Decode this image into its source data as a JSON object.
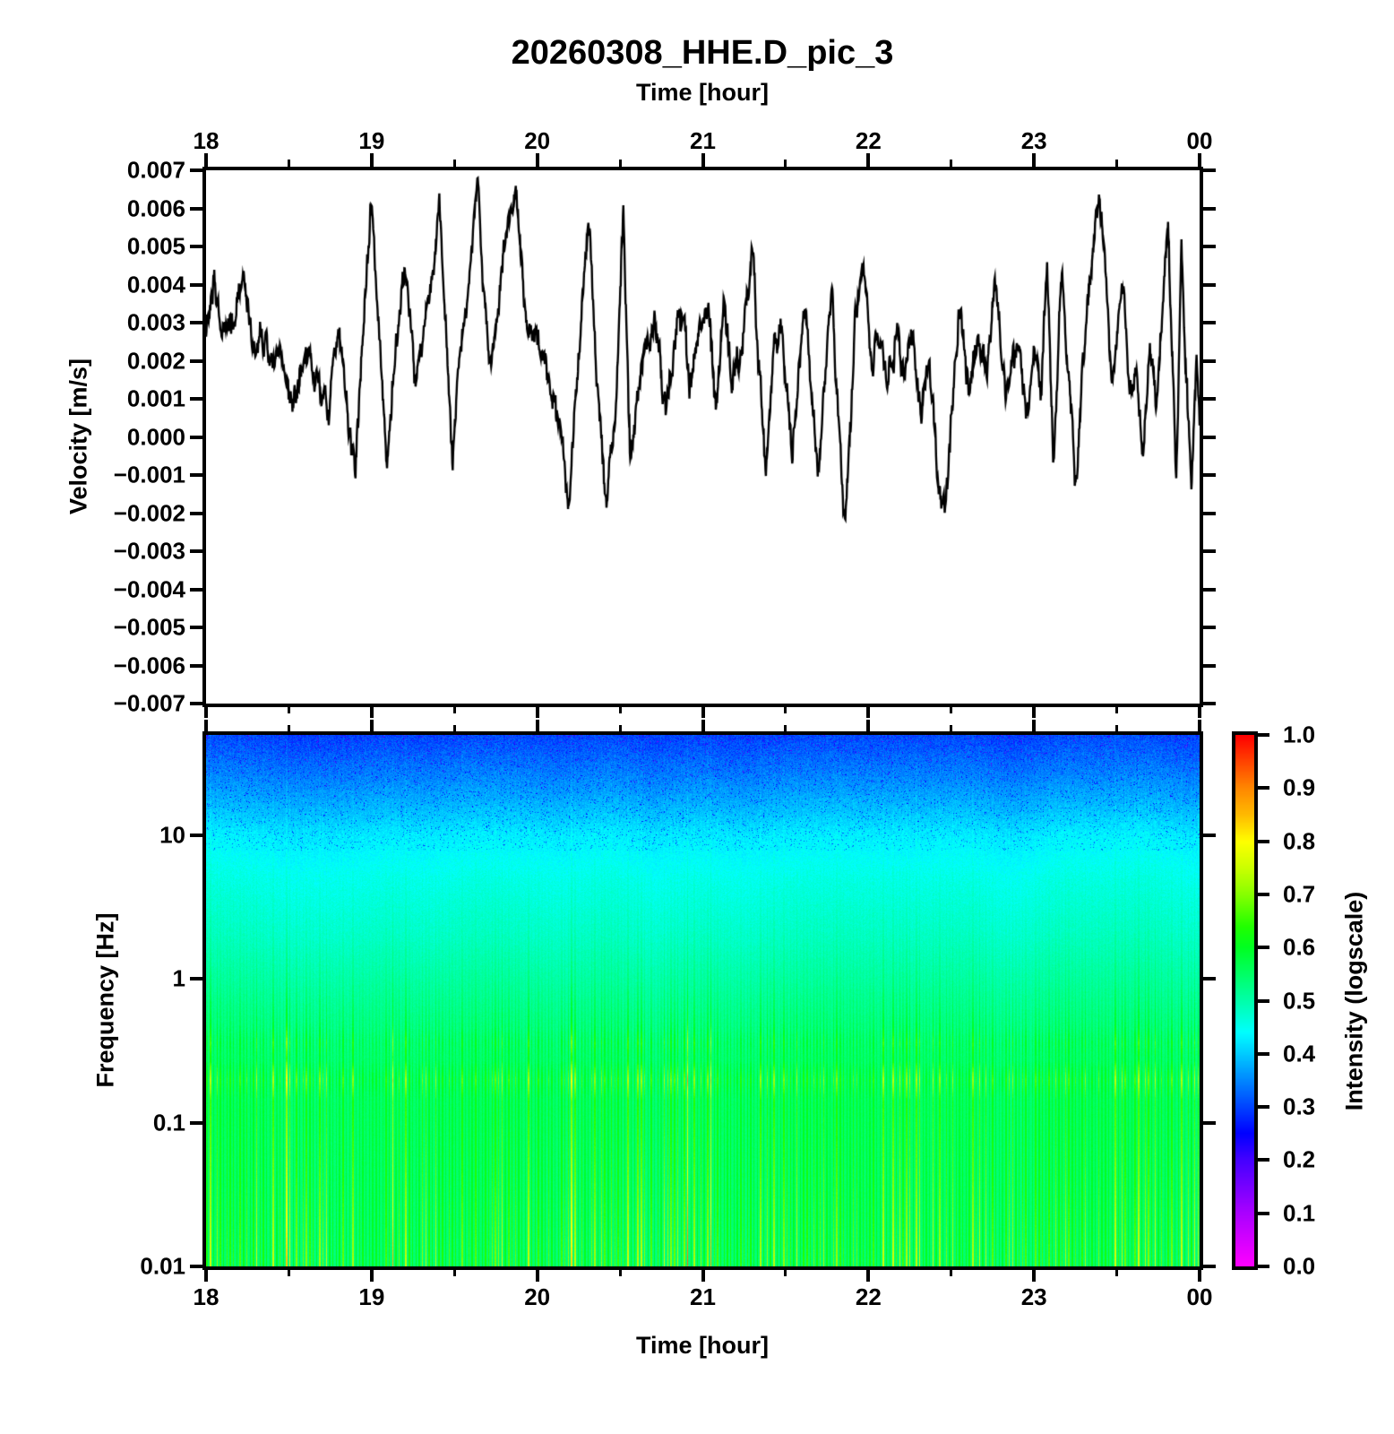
{
  "title": "20260308_HHE.D_pic_3",
  "top_axis": {
    "label": "Time [hour]",
    "tick_labels": [
      "18",
      "19",
      "20",
      "21",
      "22",
      "23",
      "00"
    ],
    "tick_hours": [
      18,
      19,
      20,
      21,
      22,
      23,
      24
    ],
    "minor_tick_hours": [
      18.5,
      19.5,
      20.5,
      21.5,
      22.5,
      23.5
    ]
  },
  "bottom_axis": {
    "label": "Time [hour]",
    "tick_labels": [
      "18",
      "19",
      "20",
      "21",
      "22",
      "23",
      "00"
    ],
    "tick_hours": [
      18,
      19,
      20,
      21,
      22,
      23,
      24
    ],
    "minor_tick_hours": [
      18.5,
      19.5,
      20.5,
      21.5,
      22.5,
      23.5
    ]
  },
  "waveform_panel": {
    "ylabel": "Velocity [m/s]",
    "y_tick_values": [
      0.007,
      0.006,
      0.005,
      0.004,
      0.003,
      0.002,
      0.001,
      0.0,
      -0.001,
      -0.002,
      -0.003,
      -0.004,
      -0.005,
      -0.006,
      -0.007
    ],
    "y_tick_labels": [
      "0.007",
      "0.006",
      "0.005",
      "0.004",
      "0.003",
      "0.002",
      "0.001",
      "0.000",
      "−0.001",
      "−0.002",
      "−0.003",
      "−0.004",
      "−0.005",
      "−0.006",
      "−0.007"
    ],
    "line_color": "#000000"
  },
  "spectrogram_panel": {
    "ylabel": "Frequency [Hz]",
    "y_tick_labels": [
      "10",
      "1",
      "0.1",
      "0.01"
    ],
    "y_tick_logf": [
      1,
      0,
      -1,
      -2
    ]
  },
  "colorbar": {
    "label": "Intensity (logscale)",
    "tick_labels": [
      "1.0",
      "0.9",
      "0.8",
      "0.7",
      "0.6",
      "0.5",
      "0.4",
      "0.3",
      "0.2",
      "0.1",
      "0.0"
    ],
    "tick_values": [
      1.0,
      0.9,
      0.8,
      0.7,
      0.6,
      0.5,
      0.4,
      0.3,
      0.2,
      0.1,
      0.0
    ]
  },
  "chart_data": [
    {
      "type": "line",
      "title": "seismic velocity trace",
      "xlabel": "Time [hour]",
      "ylabel": "Velocity [m/s]",
      "xlim": [
        18,
        24
      ],
      "ylim": [
        -0.007,
        0.007
      ],
      "seed": 1337,
      "noise": {
        "smooth_amp": 0.00045,
        "fast_amp": 0.00028,
        "jitter_amp": 0.0002
      },
      "anchors": [
        [
          18.0,
          0.003
        ],
        [
          18.05,
          0.0038
        ],
        [
          18.1,
          0.0028
        ],
        [
          18.17,
          0.003
        ],
        [
          18.23,
          0.0044
        ],
        [
          18.28,
          0.0024
        ],
        [
          18.33,
          0.0026
        ],
        [
          18.38,
          0.0019
        ],
        [
          18.44,
          0.0026
        ],
        [
          18.5,
          0.0013
        ],
        [
          18.55,
          0.0009
        ],
        [
          18.6,
          0.0026
        ],
        [
          18.65,
          0.0018
        ],
        [
          18.7,
          0.0012
        ],
        [
          18.74,
          0.0009
        ],
        [
          18.8,
          0.003
        ],
        [
          18.85,
          0.0012
        ],
        [
          18.9,
          -0.0008
        ],
        [
          18.95,
          0.003
        ],
        [
          19.0,
          0.0062
        ],
        [
          19.05,
          0.002
        ],
        [
          19.09,
          -0.0007
        ],
        [
          19.14,
          0.0024
        ],
        [
          19.2,
          0.0049
        ],
        [
          19.26,
          0.0018
        ],
        [
          19.32,
          0.003
        ],
        [
          19.37,
          0.0042
        ],
        [
          19.41,
          0.0061
        ],
        [
          19.45,
          0.0032
        ],
        [
          19.49,
          -0.0008
        ],
        [
          19.53,
          0.0024
        ],
        [
          19.58,
          0.0036
        ],
        [
          19.64,
          0.0066
        ],
        [
          19.68,
          0.0038
        ],
        [
          19.71,
          0.0018
        ],
        [
          19.76,
          0.0032
        ],
        [
          19.8,
          0.0046
        ],
        [
          19.87,
          0.0064
        ],
        [
          19.92,
          0.0038
        ],
        [
          19.97,
          0.0026
        ],
        [
          20.03,
          0.0022
        ],
        [
          20.08,
          0.0016
        ],
        [
          20.13,
          0.0002
        ],
        [
          20.19,
          -0.0013
        ],
        [
          20.24,
          0.0012
        ],
        [
          20.31,
          0.0058
        ],
        [
          20.36,
          0.0014
        ],
        [
          20.42,
          -0.0017
        ],
        [
          20.47,
          0.0008
        ],
        [
          20.52,
          0.0058
        ],
        [
          20.56,
          -0.0006
        ],
        [
          20.61,
          0.0012
        ],
        [
          20.66,
          0.0024
        ],
        [
          20.71,
          0.0032
        ],
        [
          20.76,
          0.001
        ],
        [
          20.81,
          0.0016
        ],
        [
          20.87,
          0.0033
        ],
        [
          20.92,
          0.0014
        ],
        [
          20.97,
          0.0024
        ],
        [
          21.03,
          0.0038
        ],
        [
          21.08,
          0.001
        ],
        [
          21.13,
          0.0034
        ],
        [
          21.18,
          0.0016
        ],
        [
          21.24,
          0.0026
        ],
        [
          21.3,
          0.005
        ],
        [
          21.34,
          0.0016
        ],
        [
          21.38,
          -0.0005
        ],
        [
          21.43,
          0.0024
        ],
        [
          21.47,
          0.0028
        ],
        [
          21.51,
          0.001
        ],
        [
          21.54,
          -0.0008
        ],
        [
          21.58,
          0.0022
        ],
        [
          21.62,
          0.0032
        ],
        [
          21.66,
          0.0008
        ],
        [
          21.7,
          -0.0011
        ],
        [
          21.74,
          0.002
        ],
        [
          21.78,
          0.0034
        ],
        [
          21.82,
          0.0006
        ],
        [
          21.86,
          -0.0021
        ],
        [
          21.92,
          0.003
        ],
        [
          21.97,
          0.0045
        ],
        [
          22.02,
          0.002
        ],
        [
          22.07,
          0.0028
        ],
        [
          22.12,
          0.0014
        ],
        [
          22.17,
          0.003
        ],
        [
          22.22,
          0.0018
        ],
        [
          22.27,
          0.0024
        ],
        [
          22.32,
          0.0008
        ],
        [
          22.37,
          0.0018
        ],
        [
          22.42,
          -0.001
        ],
        [
          22.46,
          -0.002
        ],
        [
          22.51,
          0.0012
        ],
        [
          22.56,
          0.0034
        ],
        [
          22.61,
          0.0008
        ],
        [
          22.66,
          0.0022
        ],
        [
          22.71,
          0.0018
        ],
        [
          22.77,
          0.0041
        ],
        [
          22.83,
          0.0008
        ],
        [
          22.9,
          0.0028
        ],
        [
          22.96,
          0.0002
        ],
        [
          23.0,
          0.0024
        ],
        [
          23.04,
          0.0012
        ],
        [
          23.08,
          0.0042
        ],
        [
          23.12,
          -0.0008
        ],
        [
          23.17,
          0.0047
        ],
        [
          23.21,
          0.0014
        ],
        [
          23.25,
          -0.0016
        ],
        [
          23.3,
          0.002
        ],
        [
          23.34,
          0.0042
        ],
        [
          23.39,
          0.0067
        ],
        [
          23.43,
          0.0048
        ],
        [
          23.47,
          0.001
        ],
        [
          23.51,
          0.003
        ],
        [
          23.54,
          0.004
        ],
        [
          23.58,
          0.0012
        ],
        [
          23.62,
          0.002
        ],
        [
          23.66,
          -0.0004
        ],
        [
          23.7,
          0.0023
        ],
        [
          23.74,
          0.001
        ],
        [
          23.78,
          0.0038
        ],
        [
          23.81,
          0.0056
        ],
        [
          23.86,
          -0.0014
        ],
        [
          23.89,
          0.0051
        ],
        [
          23.95,
          -0.0014
        ],
        [
          23.98,
          0.0018
        ],
        [
          24.0,
          0.0006
        ]
      ]
    },
    {
      "type": "heatmap",
      "title": "spectrogram",
      "xlabel": "Time [hour]",
      "ylabel": "Frequency [Hz]",
      "xlim": [
        18,
        24
      ],
      "freq_range_hz": [
        0.01,
        50
      ],
      "intensity_label": "Intensity (logscale)",
      "intensity_range": [
        0.0,
        1.0
      ],
      "seed": 7331,
      "stripe_spacing_px": 3.7,
      "base_intensity_vs_logf": [
        [
          -2.0,
          0.565
        ],
        [
          -1.7,
          0.563
        ],
        [
          -1.3,
          0.56
        ],
        [
          -0.9,
          0.558
        ],
        [
          -0.6,
          0.55
        ],
        [
          -0.3,
          0.53
        ],
        [
          0.0,
          0.505
        ],
        [
          0.3,
          0.48
        ],
        [
          0.7,
          0.455
        ],
        [
          1.0,
          0.425
        ],
        [
          1.2,
          0.385
        ],
        [
          1.45,
          0.34
        ],
        [
          1.7,
          0.3
        ]
      ],
      "stripe_amp_vs_logf": [
        [
          -2.0,
          0.095
        ],
        [
          -1.7,
          0.08
        ],
        [
          -1.4,
          0.065
        ],
        [
          -1.0,
          0.05
        ],
        [
          -0.85,
          0.045
        ],
        [
          -0.7,
          0.085
        ],
        [
          -0.55,
          0.035
        ],
        [
          -0.44,
          0.055
        ],
        [
          -0.3,
          0.03
        ],
        [
          0.0,
          0.016
        ],
        [
          0.3,
          0.01
        ],
        [
          0.6,
          0.006
        ],
        [
          1.7,
          0.004
        ]
      ],
      "noise_amp_vs_logf": [
        [
          -2.0,
          0.008
        ],
        [
          -1.0,
          0.008
        ],
        [
          0.0,
          0.01
        ],
        [
          0.7,
          0.015
        ],
        [
          1.2,
          0.022
        ],
        [
          1.7,
          0.03
        ]
      ],
      "band_bumps": [
        {
          "logf": -0.7,
          "width": 0.13,
          "bump": 0.012
        },
        {
          "logf": -0.44,
          "width": 0.1,
          "bump": 0.006
        }
      ],
      "colormap_stops": [
        [
          0.0,
          255,
          0,
          255
        ],
        [
          0.1,
          170,
          0,
          255
        ],
        [
          0.2,
          68,
          0,
          255
        ],
        [
          0.25,
          0,
          0,
          255
        ],
        [
          0.3,
          0,
          68,
          255
        ],
        [
          0.35,
          0,
          136,
          255
        ],
        [
          0.4,
          0,
          204,
          255
        ],
        [
          0.44,
          0,
          255,
          255
        ],
        [
          0.5,
          0,
          255,
          170
        ],
        [
          0.55,
          0,
          255,
          102
        ],
        [
          0.6,
          0,
          255,
          34
        ],
        [
          0.64,
          34,
          255,
          0
        ],
        [
          0.7,
          136,
          255,
          0
        ],
        [
          0.75,
          204,
          255,
          0
        ],
        [
          0.8,
          255,
          255,
          0
        ],
        [
          0.85,
          255,
          187,
          0
        ],
        [
          0.9,
          255,
          136,
          0
        ],
        [
          0.95,
          255,
          68,
          0
        ],
        [
          1.0,
          255,
          0,
          0
        ]
      ]
    }
  ]
}
